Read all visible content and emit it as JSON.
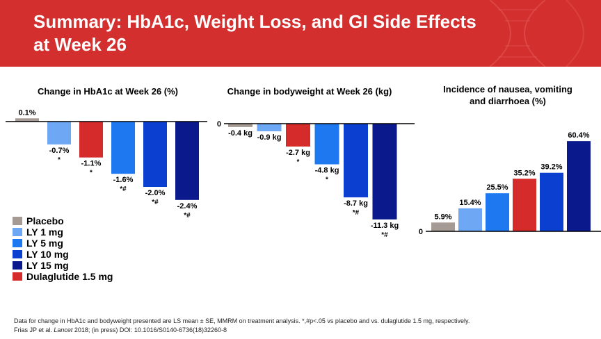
{
  "title": "Summary: HbA1c, Weight Loss, and GI Side Effects\n at Week 26",
  "colors": {
    "banner": "#d32f2f",
    "placebo": "#a59a94",
    "ly1": "#6ea8f5",
    "ly5": "#1e78f0",
    "ly10": "#0a3fd0",
    "ly15": "#0a1a8c",
    "dula": "#d62b2b"
  },
  "legend": [
    {
      "label": "Placebo",
      "color": "#a59a94"
    },
    {
      "label": "LY 1 mg",
      "color": "#6ea8f5"
    },
    {
      "label": "LY 5 mg",
      "color": "#1e78f0"
    },
    {
      "label": "LY 10 mg",
      "color": "#0a3fd0"
    },
    {
      "label": "LY 15 mg",
      "color": "#0a1a8c"
    },
    {
      "label": "Dulaglutide 1.5 mg",
      "color": "#d62b2b"
    }
  ],
  "chart_data": [
    {
      "type": "bar",
      "title": "Change in HbA1c at Week 26 (%)",
      "categories": [
        "Placebo",
        "LY 1 mg",
        "Dulaglutide 1.5 mg",
        "LY 5 mg",
        "LY 10 mg",
        "LY 15 mg"
      ],
      "values": [
        0.1,
        -0.7,
        -1.1,
        -1.6,
        -2.0,
        -2.4
      ],
      "labels": [
        "0.1%",
        "-0.7%",
        "-1.1%",
        "-1.6%",
        "-2.0%",
        "-2.4%"
      ],
      "significance": [
        "",
        "*",
        "*",
        "*#",
        "*#",
        "*#"
      ],
      "colors": [
        "#a59a94",
        "#6ea8f5",
        "#d62b2b",
        "#1e78f0",
        "#0a3fd0",
        "#0a1a8c"
      ],
      "ylim": [
        -2.6,
        0.3
      ]
    },
    {
      "type": "bar",
      "title": "Change in bodyweight at Week 26 (kg)",
      "categories": [
        "Placebo",
        "LY 1 mg",
        "Dulaglutide 1.5 mg",
        "LY 5 mg",
        "LY 10 mg",
        "LY 15 mg"
      ],
      "values": [
        -0.4,
        -0.9,
        -2.7,
        -4.8,
        -8.7,
        -11.3
      ],
      "labels": [
        "-0.4 kg",
        "-0.9 kg",
        "-2.7 kg",
        "-4.8 kg",
        "-8.7 kg",
        "-11.3 kg"
      ],
      "significance": [
        "",
        "",
        "*",
        "*",
        "*#",
        "*#"
      ],
      "colors": [
        "#a59a94",
        "#6ea8f5",
        "#d62b2b",
        "#1e78f0",
        "#0a3fd0",
        "#0a1a8c"
      ],
      "zero_label": "0",
      "ylim": [
        -12,
        0
      ]
    },
    {
      "type": "bar",
      "title": "Incidence of nausea, vomiting\nand diarrhoea (%)",
      "categories": [
        "Placebo",
        "LY 1 mg",
        "LY 5 mg",
        "Dulaglutide 1.5 mg",
        "LY 10 mg",
        "LY 15 mg"
      ],
      "values": [
        5.9,
        15.4,
        25.5,
        35.2,
        39.2,
        60.4
      ],
      "labels": [
        "5.9%",
        "15.4%",
        "25.5%",
        "35.2%",
        "39.2%",
        "60.4%"
      ],
      "colors": [
        "#a59a94",
        "#6ea8f5",
        "#1e78f0",
        "#d62b2b",
        "#0a3fd0",
        "#0a1a8c"
      ],
      "zero_label": "0",
      "ylim": [
        0,
        65
      ]
    }
  ],
  "footnote": {
    "line1": "Data for change in HbA1c and bodyweight presented are LS mean ± SE, MMRM on treatment analysis. *,#p<.05 vs placebo and vs. dulaglutide 1.5 mg, respectively.",
    "line2_prefix": "Frias JP et al. ",
    "line2_journal": "Lancet",
    "line2_suffix": " 2018; (in press) DOI: 10.1016/S0140-6736(18)32260-8"
  }
}
